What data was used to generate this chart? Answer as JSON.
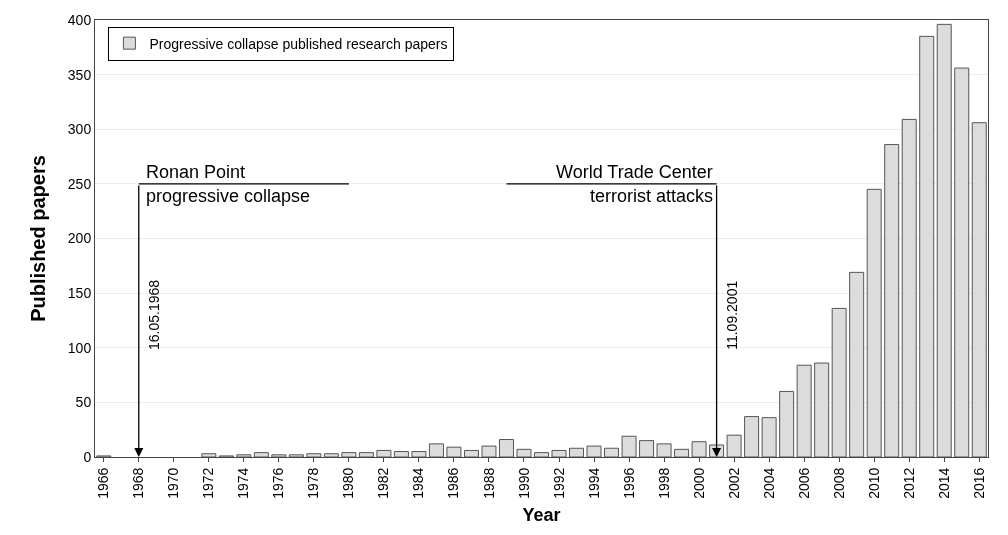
{
  "chart_data": {
    "type": "bar",
    "xlabel": "Year",
    "ylabel": "Published papers",
    "x": [
      1966,
      1967,
      1968,
      1969,
      1970,
      1971,
      1972,
      1973,
      1974,
      1975,
      1976,
      1977,
      1978,
      1979,
      1980,
      1981,
      1982,
      1983,
      1984,
      1985,
      1986,
      1987,
      1988,
      1989,
      1990,
      1991,
      1992,
      1993,
      1994,
      1995,
      1996,
      1997,
      1998,
      1999,
      2000,
      2001,
      2002,
      2003,
      2004,
      2005,
      2006,
      2007,
      2008,
      2009,
      2010,
      2011,
      2012,
      2013,
      2014,
      2015,
      2016
    ],
    "series": [
      {
        "name": "Progressive collapse published research papers",
        "color": "#dcdcdc",
        "values": [
          1,
          0,
          0,
          0,
          0,
          0,
          3,
          1,
          2,
          4,
          2,
          2,
          3,
          3,
          4,
          4,
          6,
          5,
          5,
          12,
          9,
          6,
          10,
          16,
          7,
          4,
          6,
          8,
          10,
          8,
          19,
          15,
          12,
          7,
          14,
          11,
          20,
          37,
          36,
          60,
          84,
          86,
          136,
          169,
          245,
          286,
          309,
          385,
          396,
          356,
          306
        ]
      }
    ],
    "xlim": [
      1965.5,
      2016.5
    ],
    "xticks": [
      1966,
      1968,
      1970,
      1972,
      1974,
      1976,
      1978,
      1980,
      1982,
      1984,
      1986,
      1988,
      1990,
      1992,
      1994,
      1996,
      1998,
      2000,
      2002,
      2004,
      2006,
      2008,
      2010,
      2012,
      2014,
      2016
    ],
    "ylim": [
      0,
      400
    ],
    "yticks": [
      0,
      50,
      100,
      150,
      200,
      250,
      300,
      350,
      400
    ],
    "grid": "y",
    "legend": "top left",
    "ref_lines": [
      {
        "axis": "x",
        "value": 1968,
        "label": "16.05.1968"
      },
      {
        "axis": "x",
        "value": 2001,
        "label": "11.09.2001"
      }
    ],
    "annotations": [
      "Ronan Point",
      "progressive collapse",
      "World Trade Center",
      "terrorist attacks"
    ]
  }
}
